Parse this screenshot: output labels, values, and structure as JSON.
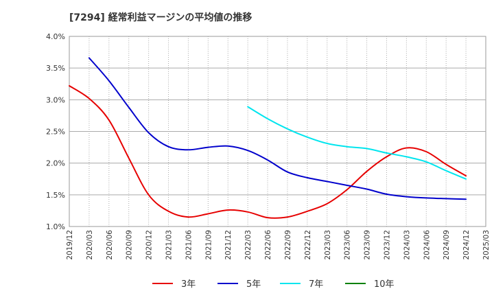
{
  "chart_data": {
    "type": "line",
    "title": "[7294]  経常利益マージンの平均値の推移",
    "y_ticks": [
      "4.0%",
      "3.5%",
      "3.0%",
      "2.5%",
      "2.0%",
      "1.5%",
      "1.0%"
    ],
    "x_ticks": [
      "2019/12",
      "2020/03",
      "2020/06",
      "2020/09",
      "2020/12",
      "2021/03",
      "2021/06",
      "2021/09",
      "2021/12",
      "2022/03",
      "2022/06",
      "2022/09",
      "2022/12",
      "2023/03",
      "2023/06",
      "2023/09",
      "2023/12",
      "2024/03",
      "2024/06",
      "2024/09",
      "2024/12",
      "2025/03"
    ],
    "ylim": [
      1.0,
      4.0
    ],
    "grid": true,
    "legend_position": "bottom",
    "series": [
      {
        "name": "3年",
        "color": "#e60000",
        "points": [
          {
            "x": "2019/12",
            "y": 3.22
          },
          {
            "x": "2020/03",
            "y": 3.02
          },
          {
            "x": "2020/06",
            "y": 2.68
          },
          {
            "x": "2020/09",
            "y": 2.08
          },
          {
            "x": "2020/12",
            "y": 1.5
          },
          {
            "x": "2021/03",
            "y": 1.24
          },
          {
            "x": "2021/06",
            "y": 1.15
          },
          {
            "x": "2021/09",
            "y": 1.2
          },
          {
            "x": "2021/12",
            "y": 1.26
          },
          {
            "x": "2022/03",
            "y": 1.23
          },
          {
            "x": "2022/06",
            "y": 1.14
          },
          {
            "x": "2022/09",
            "y": 1.15
          },
          {
            "x": "2022/12",
            "y": 1.24
          },
          {
            "x": "2023/03",
            "y": 1.36
          },
          {
            "x": "2023/06",
            "y": 1.58
          },
          {
            "x": "2023/09",
            "y": 1.87
          },
          {
            "x": "2023/12",
            "y": 2.1
          },
          {
            "x": "2024/03",
            "y": 2.24
          },
          {
            "x": "2024/06",
            "y": 2.18
          },
          {
            "x": "2024/09",
            "y": 1.98
          },
          {
            "x": "2024/12",
            "y": 1.8
          }
        ]
      },
      {
        "name": "5年",
        "color": "#0000cc",
        "points": [
          {
            "x": "2020/03",
            "y": 3.66
          },
          {
            "x": "2020/06",
            "y": 3.3
          },
          {
            "x": "2020/09",
            "y": 2.88
          },
          {
            "x": "2020/12",
            "y": 2.48
          },
          {
            "x": "2021/03",
            "y": 2.26
          },
          {
            "x": "2021/06",
            "y": 2.21
          },
          {
            "x": "2021/09",
            "y": 2.25
          },
          {
            "x": "2021/12",
            "y": 2.27
          },
          {
            "x": "2022/03",
            "y": 2.2
          },
          {
            "x": "2022/06",
            "y": 2.05
          },
          {
            "x": "2022/09",
            "y": 1.86
          },
          {
            "x": "2022/12",
            "y": 1.77
          },
          {
            "x": "2023/03",
            "y": 1.71
          },
          {
            "x": "2023/06",
            "y": 1.65
          },
          {
            "x": "2023/09",
            "y": 1.59
          },
          {
            "x": "2023/12",
            "y": 1.51
          },
          {
            "x": "2024/03",
            "y": 1.47
          },
          {
            "x": "2024/06",
            "y": 1.45
          },
          {
            "x": "2024/09",
            "y": 1.44
          },
          {
            "x": "2024/12",
            "y": 1.43
          }
        ]
      },
      {
        "name": "7年",
        "color": "#00e5ee",
        "points": [
          {
            "x": "2022/03",
            "y": 2.89
          },
          {
            "x": "2022/06",
            "y": 2.7
          },
          {
            "x": "2022/09",
            "y": 2.54
          },
          {
            "x": "2022/12",
            "y": 2.41
          },
          {
            "x": "2023/03",
            "y": 2.31
          },
          {
            "x": "2023/06",
            "y": 2.26
          },
          {
            "x": "2023/09",
            "y": 2.23
          },
          {
            "x": "2023/12",
            "y": 2.16
          },
          {
            "x": "2024/03",
            "y": 2.1
          },
          {
            "x": "2024/06",
            "y": 2.02
          },
          {
            "x": "2024/09",
            "y": 1.88
          },
          {
            "x": "2024/12",
            "y": 1.75
          }
        ]
      },
      {
        "name": "10年",
        "color": "#008000",
        "points": []
      }
    ]
  }
}
